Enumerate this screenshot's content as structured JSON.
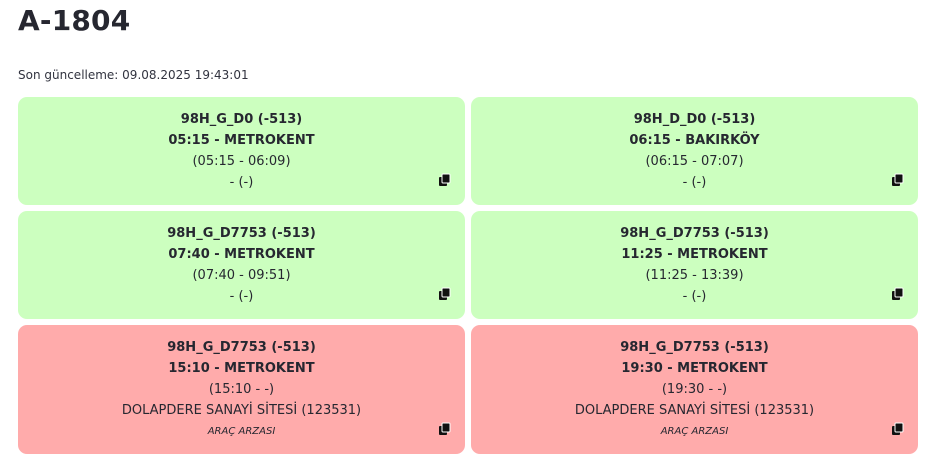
{
  "page": {
    "title": "A-1804",
    "last_update": "Son güncelleme: 09.08.2025 19:43:01"
  },
  "cards": [
    {
      "status": "ok",
      "route": "98H_G_D0 (-513)",
      "departure": "05:15 - METROKENT",
      "time_range": "(05:15 - 06:09)",
      "location": "- (-)",
      "note": ""
    },
    {
      "status": "ok",
      "route": "98H_D_D0 (-513)",
      "departure": "06:15 - BAKIRKÖY",
      "time_range": "(06:15 - 07:07)",
      "location": "- (-)",
      "note": ""
    },
    {
      "status": "ok",
      "route": "98H_G_D7753 (-513)",
      "departure": "07:40 - METROKENT",
      "time_range": "(07:40 - 09:51)",
      "location": "- (-)",
      "note": ""
    },
    {
      "status": "ok",
      "route": "98H_G_D7753 (-513)",
      "departure": "11:25 - METROKENT",
      "time_range": "(11:25 - 13:39)",
      "location": "- (-)",
      "note": ""
    },
    {
      "status": "fault",
      "route": "98H_G_D7753 (-513)",
      "departure": "15:10 - METROKENT",
      "time_range": "(15:10 - -)",
      "location": "DOLAPDERE SANAYİ SİTESİ (123531)",
      "note": "ARAÇ ARZASI"
    },
    {
      "status": "fault",
      "route": "98H_G_D7753 (-513)",
      "departure": "19:30 - METROKENT",
      "time_range": "(19:30 - -)",
      "location": "DOLAPDERE SANAYİ SİTESİ (123531)",
      "note": "ARAÇ ARZASI"
    }
  ],
  "colors": {
    "ok_background": "#ccffbf",
    "fault_background": "#ffabab"
  },
  "icons": {
    "copy": "copy-icon"
  }
}
